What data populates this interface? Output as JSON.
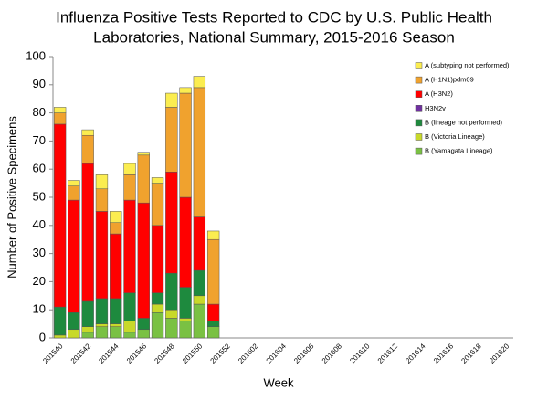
{
  "chart_data": {
    "type": "bar",
    "stacked": true,
    "title": [
      "Influenza Positive Tests Reported to CDC by U.S. Public Health",
      "Laboratories, National Summary, 2015-2016 Season"
    ],
    "x_label": "Week",
    "y_label": "Number of Positive Specimens",
    "categories": [
      "201540",
      null,
      "201542",
      null,
      "201544",
      null,
      "201546",
      null,
      "201548",
      null,
      "201550",
      null,
      "201552",
      null,
      "201602",
      null,
      "201604",
      null,
      "201606",
      null,
      "201608",
      null,
      "201610",
      null,
      "201612",
      null,
      "201614",
      null,
      "201616",
      null,
      "201618",
      null,
      "201620"
    ],
    "series": [
      {
        "name": "B (Yamagata Lineage)",
        "color": "#7ac143",
        "values": [
          0,
          0,
          2,
          4,
          4,
          2,
          3,
          9,
          7,
          6,
          12,
          4,
          null,
          null,
          null,
          null,
          null,
          null,
          null,
          null,
          null,
          null,
          null,
          null,
          null,
          null,
          null,
          null,
          null,
          null,
          null,
          null,
          null
        ]
      },
      {
        "name": "B (Victoria Lineage)",
        "color": "#c8d92a",
        "values": [
          1,
          3,
          2,
          1,
          1,
          4,
          0,
          3,
          3,
          1,
          3,
          0,
          null,
          null,
          null,
          null,
          null,
          null,
          null,
          null,
          null,
          null,
          null,
          null,
          null,
          null,
          null,
          null,
          null,
          null,
          null,
          null,
          null
        ]
      },
      {
        "name": "B (lineage not performed)",
        "color": "#1e8a3e",
        "values": [
          10,
          6,
          9,
          9,
          9,
          10,
          4,
          4,
          13,
          11,
          9,
          2,
          null,
          null,
          null,
          null,
          null,
          null,
          null,
          null,
          null,
          null,
          null,
          null,
          null,
          null,
          null,
          null,
          null,
          null,
          null,
          null,
          null
        ]
      },
      {
        "name": "H3N2v",
        "color": "#7030a0",
        "values": [
          0,
          0,
          0,
          0,
          0,
          0,
          0,
          0,
          0,
          0,
          0,
          0,
          null,
          null,
          null,
          null,
          null,
          null,
          null,
          null,
          null,
          null,
          null,
          null,
          null,
          null,
          null,
          null,
          null,
          null,
          null,
          null,
          null
        ]
      },
      {
        "name": "A (H3N2)",
        "color": "#ff0000",
        "values": [
          65,
          40,
          49,
          31,
          23,
          33,
          41,
          24,
          36,
          32,
          19,
          6,
          null,
          null,
          null,
          null,
          null,
          null,
          null,
          null,
          null,
          null,
          null,
          null,
          null,
          null,
          null,
          null,
          null,
          null,
          null,
          null,
          null
        ]
      },
      {
        "name": "A (H1N1)pdm09",
        "color": "#f0a22e",
        "values": [
          4,
          5,
          10,
          8,
          4,
          9,
          17,
          15,
          23,
          37,
          46,
          23,
          null,
          null,
          null,
          null,
          null,
          null,
          null,
          null,
          null,
          null,
          null,
          null,
          null,
          null,
          null,
          null,
          null,
          null,
          null,
          null,
          null
        ]
      },
      {
        "name": "A (subtyping not performed)",
        "color": "#fbed50",
        "values": [
          2,
          2,
          2,
          5,
          4,
          4,
          1,
          2,
          5,
          2,
          4,
          3,
          null,
          null,
          null,
          null,
          null,
          null,
          null,
          null,
          null,
          null,
          null,
          null,
          null,
          null,
          null,
          null,
          null,
          null,
          null,
          null,
          null
        ]
      }
    ],
    "ylim": [
      0,
      100
    ],
    "yticks": [
      0,
      10,
      20,
      30,
      40,
      50,
      60,
      70,
      80,
      90,
      100
    ],
    "legend": "top-right"
  }
}
